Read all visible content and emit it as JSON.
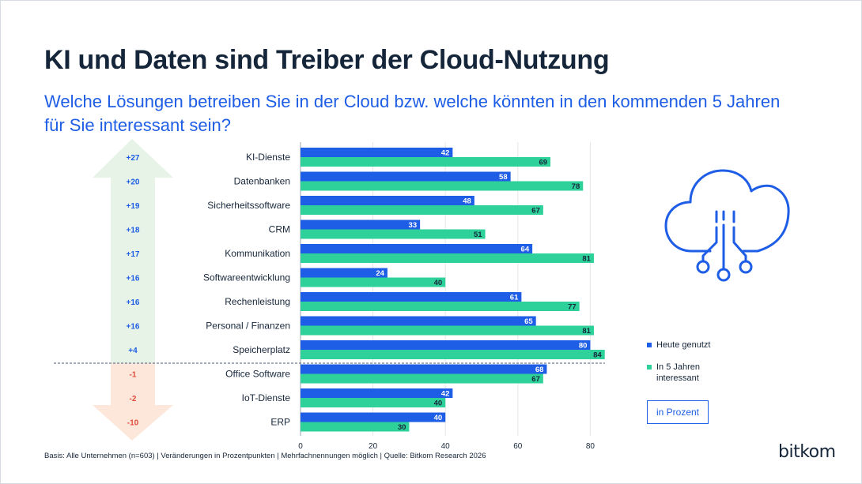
{
  "title": "KI und Daten sind Treiber der Cloud-Nutzung",
  "subtitle": "Welche Lösungen betreiben Sie in der Cloud bzw. welche könnten in den kommenden 5 Jahren für Sie interessant sein?",
  "legend": {
    "today": "Heute genutzt",
    "future": "In 5 Jahren interessant"
  },
  "unit_label": "in Prozent",
  "footnote": "Basis: Alle Unternehmen (n=603) | Veränderungen in Prozentpunkten | Mehrfachnennungen möglich | Quelle: Bitkom Research 2026",
  "logo": "bitkom",
  "icon": "cloud-circuit-icon",
  "colors": {
    "today": "#1e5de5",
    "future": "#2ed19a",
    "up_arrow": "#e6f3e6",
    "down_arrow": "#fde6da",
    "positive_text": "#1e5de5",
    "negative_text": "#e24b3a"
  },
  "chart_data": {
    "type": "bar",
    "orientation": "horizontal",
    "categories": [
      "KI-Dienste",
      "Datenbanken",
      "Sicherheitssoftware",
      "CRM",
      "Kommunikation",
      "Softwareentwicklung",
      "Rechenleistung",
      "Personal / Finanzen",
      "Speicherplatz",
      "Office Software",
      "IoT-Dienste",
      "ERP"
    ],
    "series": [
      {
        "name": "Heute genutzt",
        "values": [
          42,
          58,
          48,
          33,
          64,
          24,
          61,
          65,
          80,
          68,
          42,
          40
        ]
      },
      {
        "name": "In 5 Jahren interessant",
        "values": [
          69,
          78,
          67,
          51,
          81,
          40,
          77,
          81,
          84,
          67,
          40,
          30
        ]
      }
    ],
    "changes": [
      "+27",
      "+20",
      "+19",
      "+18",
      "+17",
      "+16",
      "+16",
      "+16",
      "+4",
      "-1",
      "-2",
      "-10"
    ],
    "xticks": [
      "0",
      "20",
      "40",
      "60",
      "80"
    ],
    "xlim": [
      0,
      84
    ],
    "grid": true
  }
}
